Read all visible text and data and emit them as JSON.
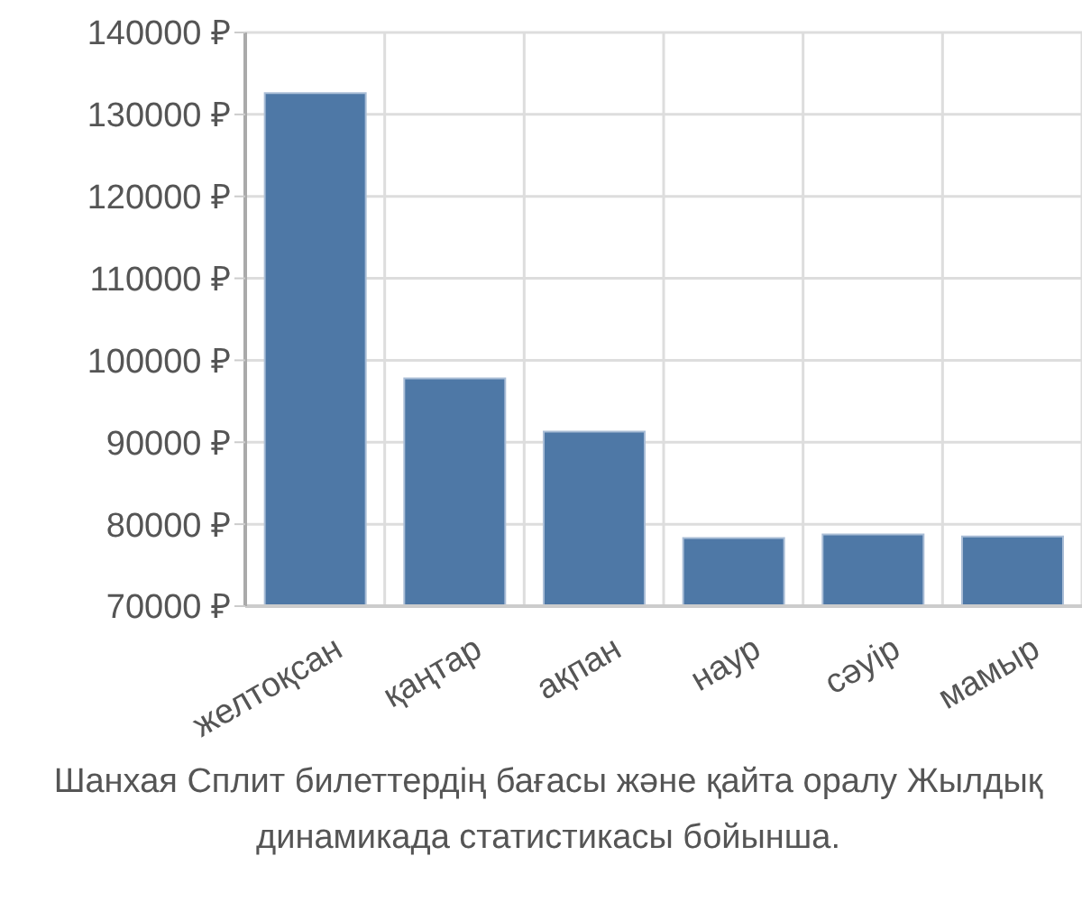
{
  "chart_data": {
    "type": "bar",
    "categories": [
      "желтоқсан",
      "қаңтар",
      "ақпан",
      "наур",
      "сәуір",
      "мамыр"
    ],
    "values": [
      132600,
      97800,
      91300,
      78300,
      78750,
      78500
    ],
    "color": "#4e78a6",
    "ylim": [
      70000,
      140000
    ],
    "yticks": [
      {
        "value": 70000,
        "label": "70000 ₽"
      },
      {
        "value": 80000,
        "label": "80000 ₽"
      },
      {
        "value": 90000,
        "label": "90000 ₽"
      },
      {
        "value": 100000,
        "label": "100000 ₽"
      },
      {
        "value": 110000,
        "label": "110000 ₽"
      },
      {
        "value": 120000,
        "label": "120000 ₽"
      },
      {
        "value": 130000,
        "label": "130000 ₽"
      },
      {
        "value": 140000,
        "label": "140000 ₽"
      }
    ],
    "grid": true,
    "annotations": [
      "Шанхая Сплит билеттердің бағасы және қайта оралу Жылдық динамикада статистикасы бойынша."
    ]
  }
}
